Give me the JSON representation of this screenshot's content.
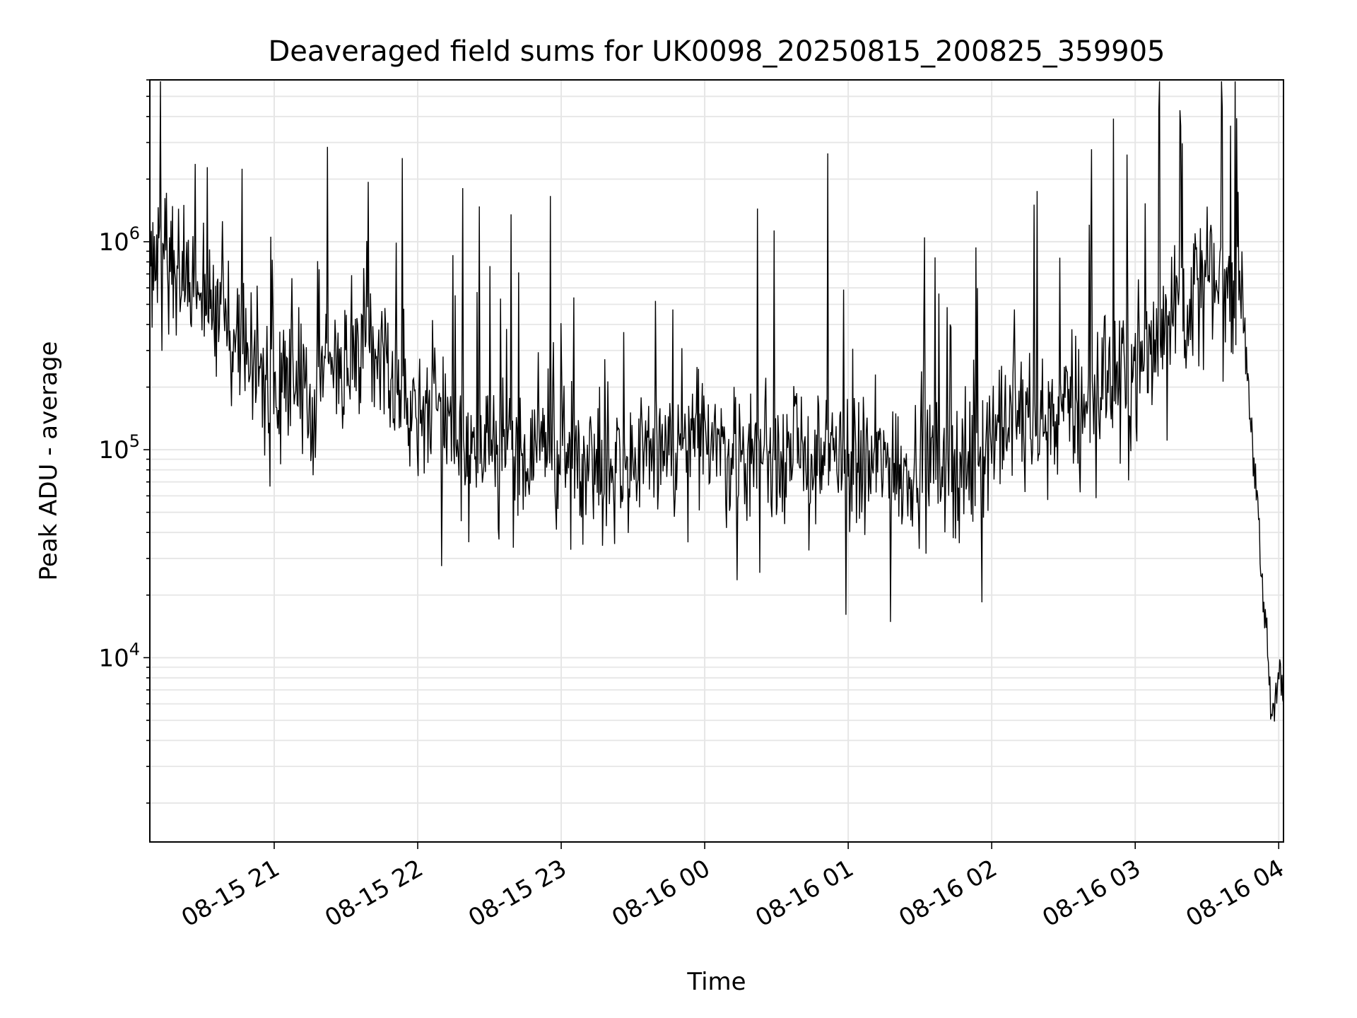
{
  "chart_data": {
    "type": "line",
    "title": "Deaveraged field sums for UK0098_20250815_200825_359905",
    "xlabel": "Time",
    "ylabel": "Peak ADU - average",
    "yscale": "log",
    "xlim": [
      "2025-08-15 20:08",
      "2025-08-16 04:02"
    ],
    "ylim": [
      1300,
      6000000
    ],
    "x_ticks": [
      {
        "t": "2025-08-15 21:00",
        "label": "08-15 21"
      },
      {
        "t": "2025-08-15 22:00",
        "label": "08-15 22"
      },
      {
        "t": "2025-08-15 23:00",
        "label": "08-15 23"
      },
      {
        "t": "2025-08-16 00:00",
        "label": "08-16 00"
      },
      {
        "t": "2025-08-16 01:00",
        "label": "08-16 01"
      },
      {
        "t": "2025-08-16 02:00",
        "label": "08-16 02"
      },
      {
        "t": "2025-08-16 03:00",
        "label": "08-16 03"
      },
      {
        "t": "2025-08-16 04:00",
        "label": "08-16 04"
      }
    ],
    "y_ticks": [
      {
        "value": 10000,
        "base": "10",
        "exp": "4"
      },
      {
        "value": 100000,
        "base": "10",
        "exp": "5"
      },
      {
        "value": 1000000,
        "base": "10",
        "exp": "6"
      }
    ],
    "grid": "both (major and minor)",
    "line_color": "#000000",
    "series": [
      {
        "x": [
          "2025-08-15 20:08",
          "2025-08-15 20:15",
          "2025-08-15 20:22",
          "2025-08-15 20:30",
          "2025-08-15 20:38",
          "2025-08-15 20:45",
          "2025-08-15 20:52",
          "2025-08-15 21:00",
          "2025-08-15 21:08",
          "2025-08-15 21:15",
          "2025-08-15 21:22",
          "2025-08-15 21:30",
          "2025-08-15 21:38",
          "2025-08-15 21:45",
          "2025-08-15 21:52",
          "2025-08-15 22:00",
          "2025-08-15 22:08",
          "2025-08-15 22:15",
          "2025-08-15 22:22",
          "2025-08-15 22:30",
          "2025-08-15 22:38",
          "2025-08-15 22:45",
          "2025-08-15 22:52",
          "2025-08-15 23:00",
          "2025-08-15 23:08",
          "2025-08-15 23:15",
          "2025-08-15 23:22",
          "2025-08-15 23:30",
          "2025-08-15 23:38",
          "2025-08-15 23:45",
          "2025-08-15 23:52",
          "2025-08-16 00:00",
          "2025-08-16 00:08",
          "2025-08-16 00:15",
          "2025-08-16 00:22",
          "2025-08-16 00:30",
          "2025-08-16 00:38",
          "2025-08-16 00:45",
          "2025-08-16 00:52",
          "2025-08-16 01:00",
          "2025-08-16 01:08",
          "2025-08-16 01:15",
          "2025-08-16 01:22",
          "2025-08-16 01:30",
          "2025-08-16 01:38",
          "2025-08-16 01:45",
          "2025-08-16 01:52",
          "2025-08-16 02:00",
          "2025-08-16 02:08",
          "2025-08-16 02:15",
          "2025-08-16 02:22",
          "2025-08-16 02:30",
          "2025-08-16 02:38",
          "2025-08-16 02:45",
          "2025-08-16 02:52",
          "2025-08-16 03:00",
          "2025-08-16 03:08",
          "2025-08-16 03:15",
          "2025-08-16 03:22",
          "2025-08-16 03:30",
          "2025-08-16 03:38",
          "2025-08-16 03:45",
          "2025-08-16 03:48",
          "2025-08-16 03:51",
          "2025-08-16 03:53",
          "2025-08-16 03:55",
          "2025-08-16 03:57",
          "2025-08-16 04:00",
          "2025-08-16 04:02"
        ],
        "y": [
          800000,
          900000,
          700000,
          600000,
          500000,
          400000,
          250000,
          200000,
          250000,
          150000,
          300000,
          250000,
          350000,
          250000,
          200000,
          200000,
          150000,
          120000,
          100000,
          110000,
          90000,
          100000,
          100000,
          100000,
          95000,
          95000,
          90000,
          85000,
          95000,
          90000,
          90000,
          120000,
          100000,
          90000,
          100000,
          100000,
          95000,
          90000,
          100000,
          85000,
          80000,
          90000,
          80000,
          90000,
          85000,
          80000,
          90000,
          120000,
          130000,
          150000,
          140000,
          160000,
          160000,
          200000,
          220000,
          250000,
          350000,
          500000,
          550000,
          650000,
          700000,
          700000,
          150000,
          60000,
          20000,
          12000,
          5000,
          8000,
          7000
        ]
      }
    ]
  }
}
